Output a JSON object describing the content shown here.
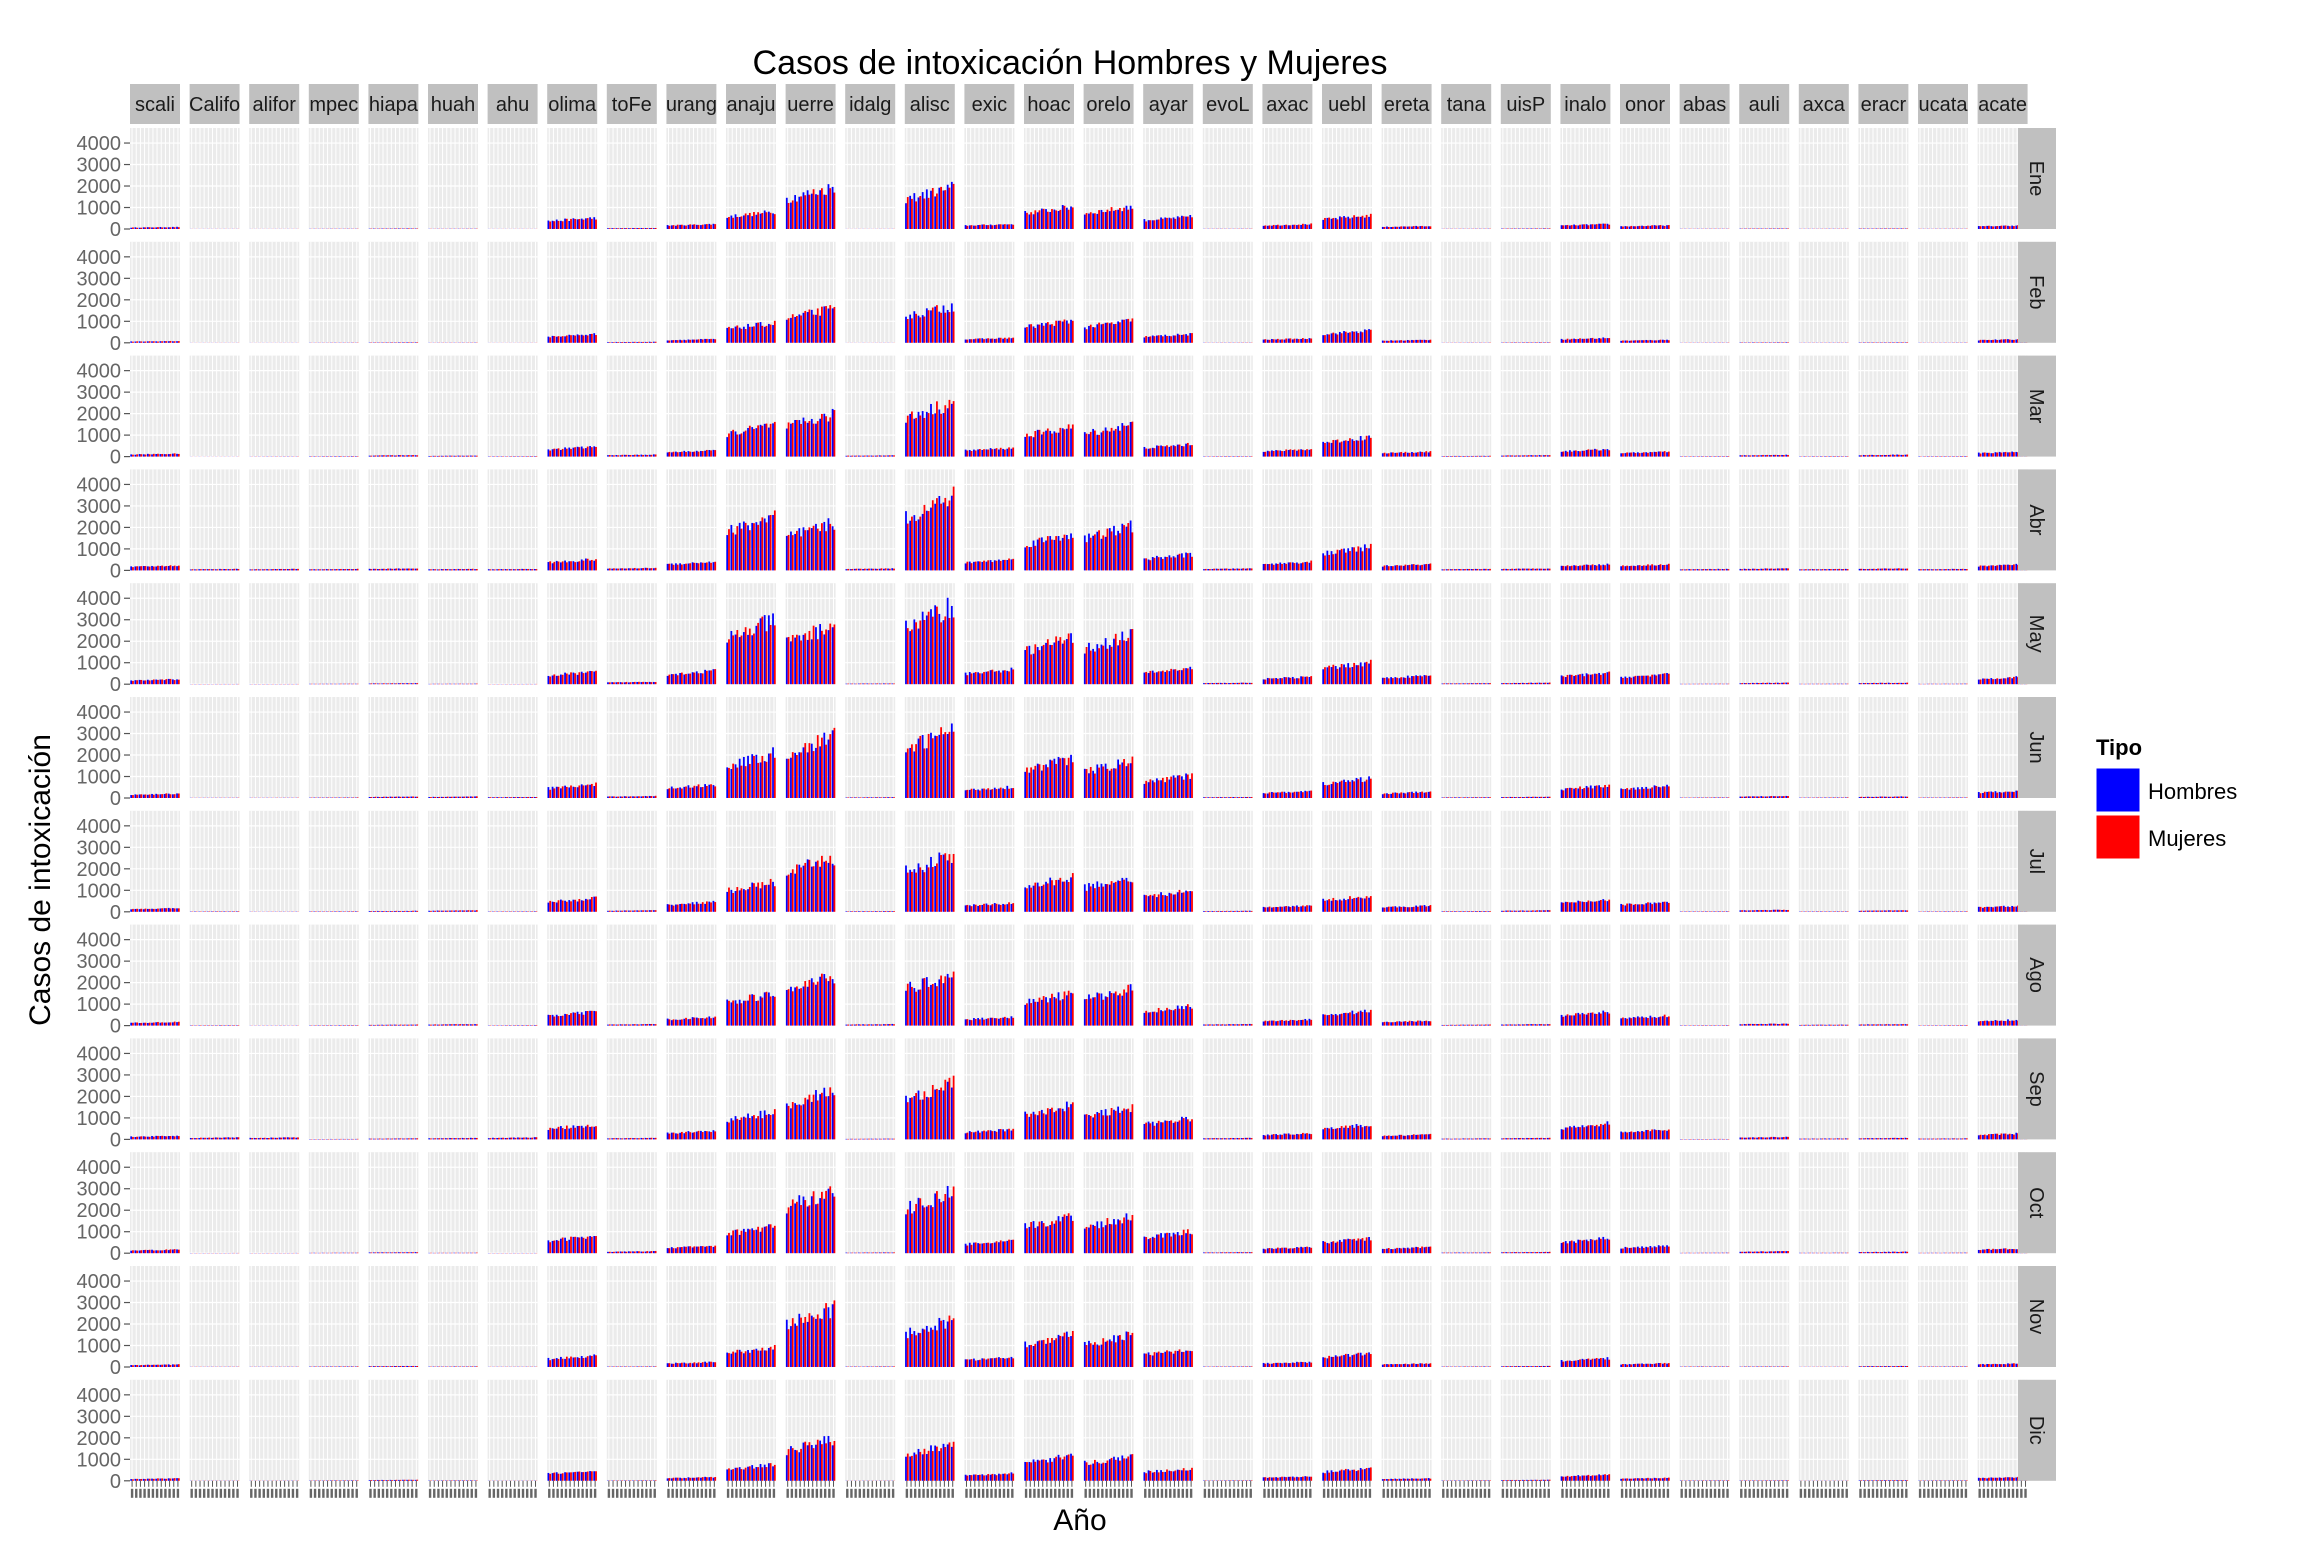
{
  "chart_data": {
    "type": "bar",
    "title": "Casos de intoxicación Hombres y Mujeres",
    "xlabel": "Año",
    "ylabel": "Casos de intoxicación",
    "ylim": [
      0,
      4700
    ],
    "yticks": [
      0,
      1000,
      2000,
      3000,
      4000
    ],
    "grid": true,
    "legend": {
      "title": "Tipo",
      "position": "right",
      "entries": [
        {
          "label": "Hombres",
          "color": "#0000ff"
        },
        {
          "label": "Mujeres",
          "color": "#ff0000"
        }
      ]
    },
    "colors": {
      "panel_bg": "#ebebeb",
      "grid": "#ffffff",
      "strip": "#c0c0c0",
      "hombres": "#0000ff",
      "mujeres": "#ff0000"
    },
    "columns": [
      "scali",
      "Califo",
      "alifor",
      "mpec",
      "hiapa",
      "huah",
      "ahu",
      "olima",
      "toFe",
      "urang",
      "anaju",
      "uerre",
      "idalg",
      "alisc",
      "exic",
      "hoac",
      "orelo",
      "ayar",
      "evoL",
      "axac",
      "uebl",
      "ereta",
      "tana",
      "uisP",
      "inalo",
      "onor",
      "abas",
      "auli",
      "axca",
      "eracr",
      "ucata",
      "acate"
    ],
    "rows": [
      "Ene",
      "Feb",
      "Mar",
      "Abr",
      "May",
      "Jun",
      "Jul",
      "Ago",
      "Sep",
      "Oct",
      "Nov",
      "Dic"
    ],
    "bars_per_panel": 12,
    "typical_level": [
      [
        80,
        5,
        5,
        10,
        20,
        10,
        5,
        450,
        40,
        200,
        700,
        1700,
        5,
        1700,
        200,
        900,
        900,
        500,
        10,
        200,
        550,
        120,
        10,
        20,
        200,
        150,
        10,
        20,
        10,
        20,
        10,
        150
      ],
      [
        70,
        5,
        5,
        10,
        20,
        10,
        5,
        350,
        40,
        150,
        800,
        1400,
        5,
        1500,
        200,
        900,
        900,
        350,
        10,
        180,
        500,
        120,
        10,
        20,
        200,
        120,
        10,
        20,
        10,
        20,
        10,
        150
      ],
      [
        120,
        5,
        10,
        20,
        60,
        40,
        20,
        400,
        80,
        250,
        1300,
        1700,
        50,
        2200,
        350,
        1200,
        1300,
        500,
        20,
        300,
        800,
        200,
        30,
        60,
        300,
        200,
        20,
        70,
        20,
        80,
        20,
        200
      ],
      [
        200,
        60,
        60,
        60,
        80,
        60,
        60,
        450,
        100,
        350,
        2200,
        1900,
        80,
        3000,
        450,
        1500,
        1800,
        650,
        80,
        350,
        950,
        250,
        60,
        80,
        250,
        250,
        60,
        80,
        60,
        80,
        60,
        250
      ],
      [
        200,
        10,
        10,
        20,
        40,
        20,
        10,
        500,
        100,
        550,
        2600,
        2400,
        30,
        3200,
        600,
        1900,
        2000,
        650,
        60,
        300,
        900,
        350,
        40,
        60,
        450,
        400,
        20,
        60,
        20,
        60,
        20,
        300
      ],
      [
        180,
        10,
        10,
        20,
        60,
        60,
        40,
        550,
        80,
        550,
        1800,
        2500,
        30,
        2800,
        450,
        1600,
        1500,
        900,
        40,
        280,
        800,
        250,
        30,
        50,
        500,
        500,
        20,
        80,
        20,
        60,
        20,
        300
      ],
      [
        150,
        20,
        10,
        20,
        40,
        60,
        20,
        550,
        60,
        400,
        1200,
        2200,
        30,
        2300,
        350,
        1400,
        1400,
        850,
        40,
        250,
        650,
        250,
        30,
        60,
        500,
        400,
        20,
        80,
        20,
        60,
        20,
        250
      ],
      [
        150,
        20,
        10,
        20,
        40,
        60,
        20,
        550,
        60,
        350,
        1300,
        2000,
        60,
        2100,
        350,
        1300,
        1500,
        800,
        60,
        250,
        600,
        200,
        40,
        60,
        550,
        400,
        20,
        80,
        40,
        60,
        20,
        250
      ],
      [
        150,
        80,
        80,
        20,
        40,
        60,
        80,
        600,
        60,
        350,
        1100,
        2000,
        30,
        2300,
        400,
        1400,
        1300,
        850,
        60,
        250,
        600,
        200,
        40,
        60,
        650,
        400,
        20,
        100,
        40,
        60,
        40,
        250
      ],
      [
        150,
        10,
        10,
        20,
        40,
        20,
        10,
        700,
        80,
        300,
        1100,
        2600,
        30,
        2500,
        500,
        1500,
        1500,
        900,
        40,
        250,
        600,
        250,
        30,
        50,
        600,
        300,
        20,
        80,
        20,
        60,
        20,
        200
      ],
      [
        100,
        10,
        10,
        20,
        40,
        20,
        10,
        450,
        20,
        200,
        800,
        2400,
        20,
        1900,
        400,
        1300,
        1300,
        700,
        20,
        200,
        550,
        150,
        20,
        40,
        350,
        150,
        20,
        20,
        10,
        40,
        20,
        150
      ],
      [
        100,
        10,
        10,
        20,
        40,
        20,
        10,
        400,
        20,
        150,
        650,
        1700,
        10,
        1500,
        300,
        1000,
        1000,
        500,
        20,
        180,
        500,
        100,
        20,
        40,
        250,
        120,
        20,
        20,
        10,
        30,
        20,
        150
      ]
    ]
  }
}
